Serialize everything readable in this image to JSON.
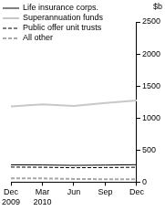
{
  "chart_data": {
    "type": "line",
    "ylabel": "$b",
    "categories": [
      "Dec 2009",
      "Mar 2010",
      "Jun",
      "Sep",
      "Dec"
    ],
    "series": [
      {
        "name": "Life insurance corps.",
        "color": "#000000",
        "line_style": "solid",
        "values": [
          270,
          268,
          262,
          266,
          272
        ]
      },
      {
        "name": "Superannuation funds",
        "color": "#c8c8c8",
        "line_style": "solid",
        "values": [
          1180,
          1215,
          1190,
          1235,
          1275
        ]
      },
      {
        "name": "Public offer unit trusts",
        "color": "#000000",
        "line_style": "dashed",
        "values": [
          235,
          232,
          225,
          228,
          232
        ]
      },
      {
        "name": "All other",
        "color": "#a8a8a8",
        "line_style": "dashed",
        "values": [
          60,
          58,
          50,
          45,
          45
        ]
      }
    ],
    "ylim": [
      0,
      2500
    ],
    "yticks": [
      0,
      500,
      1000,
      1500,
      2000,
      2500
    ],
    "grid": false,
    "legend": "top-left"
  }
}
